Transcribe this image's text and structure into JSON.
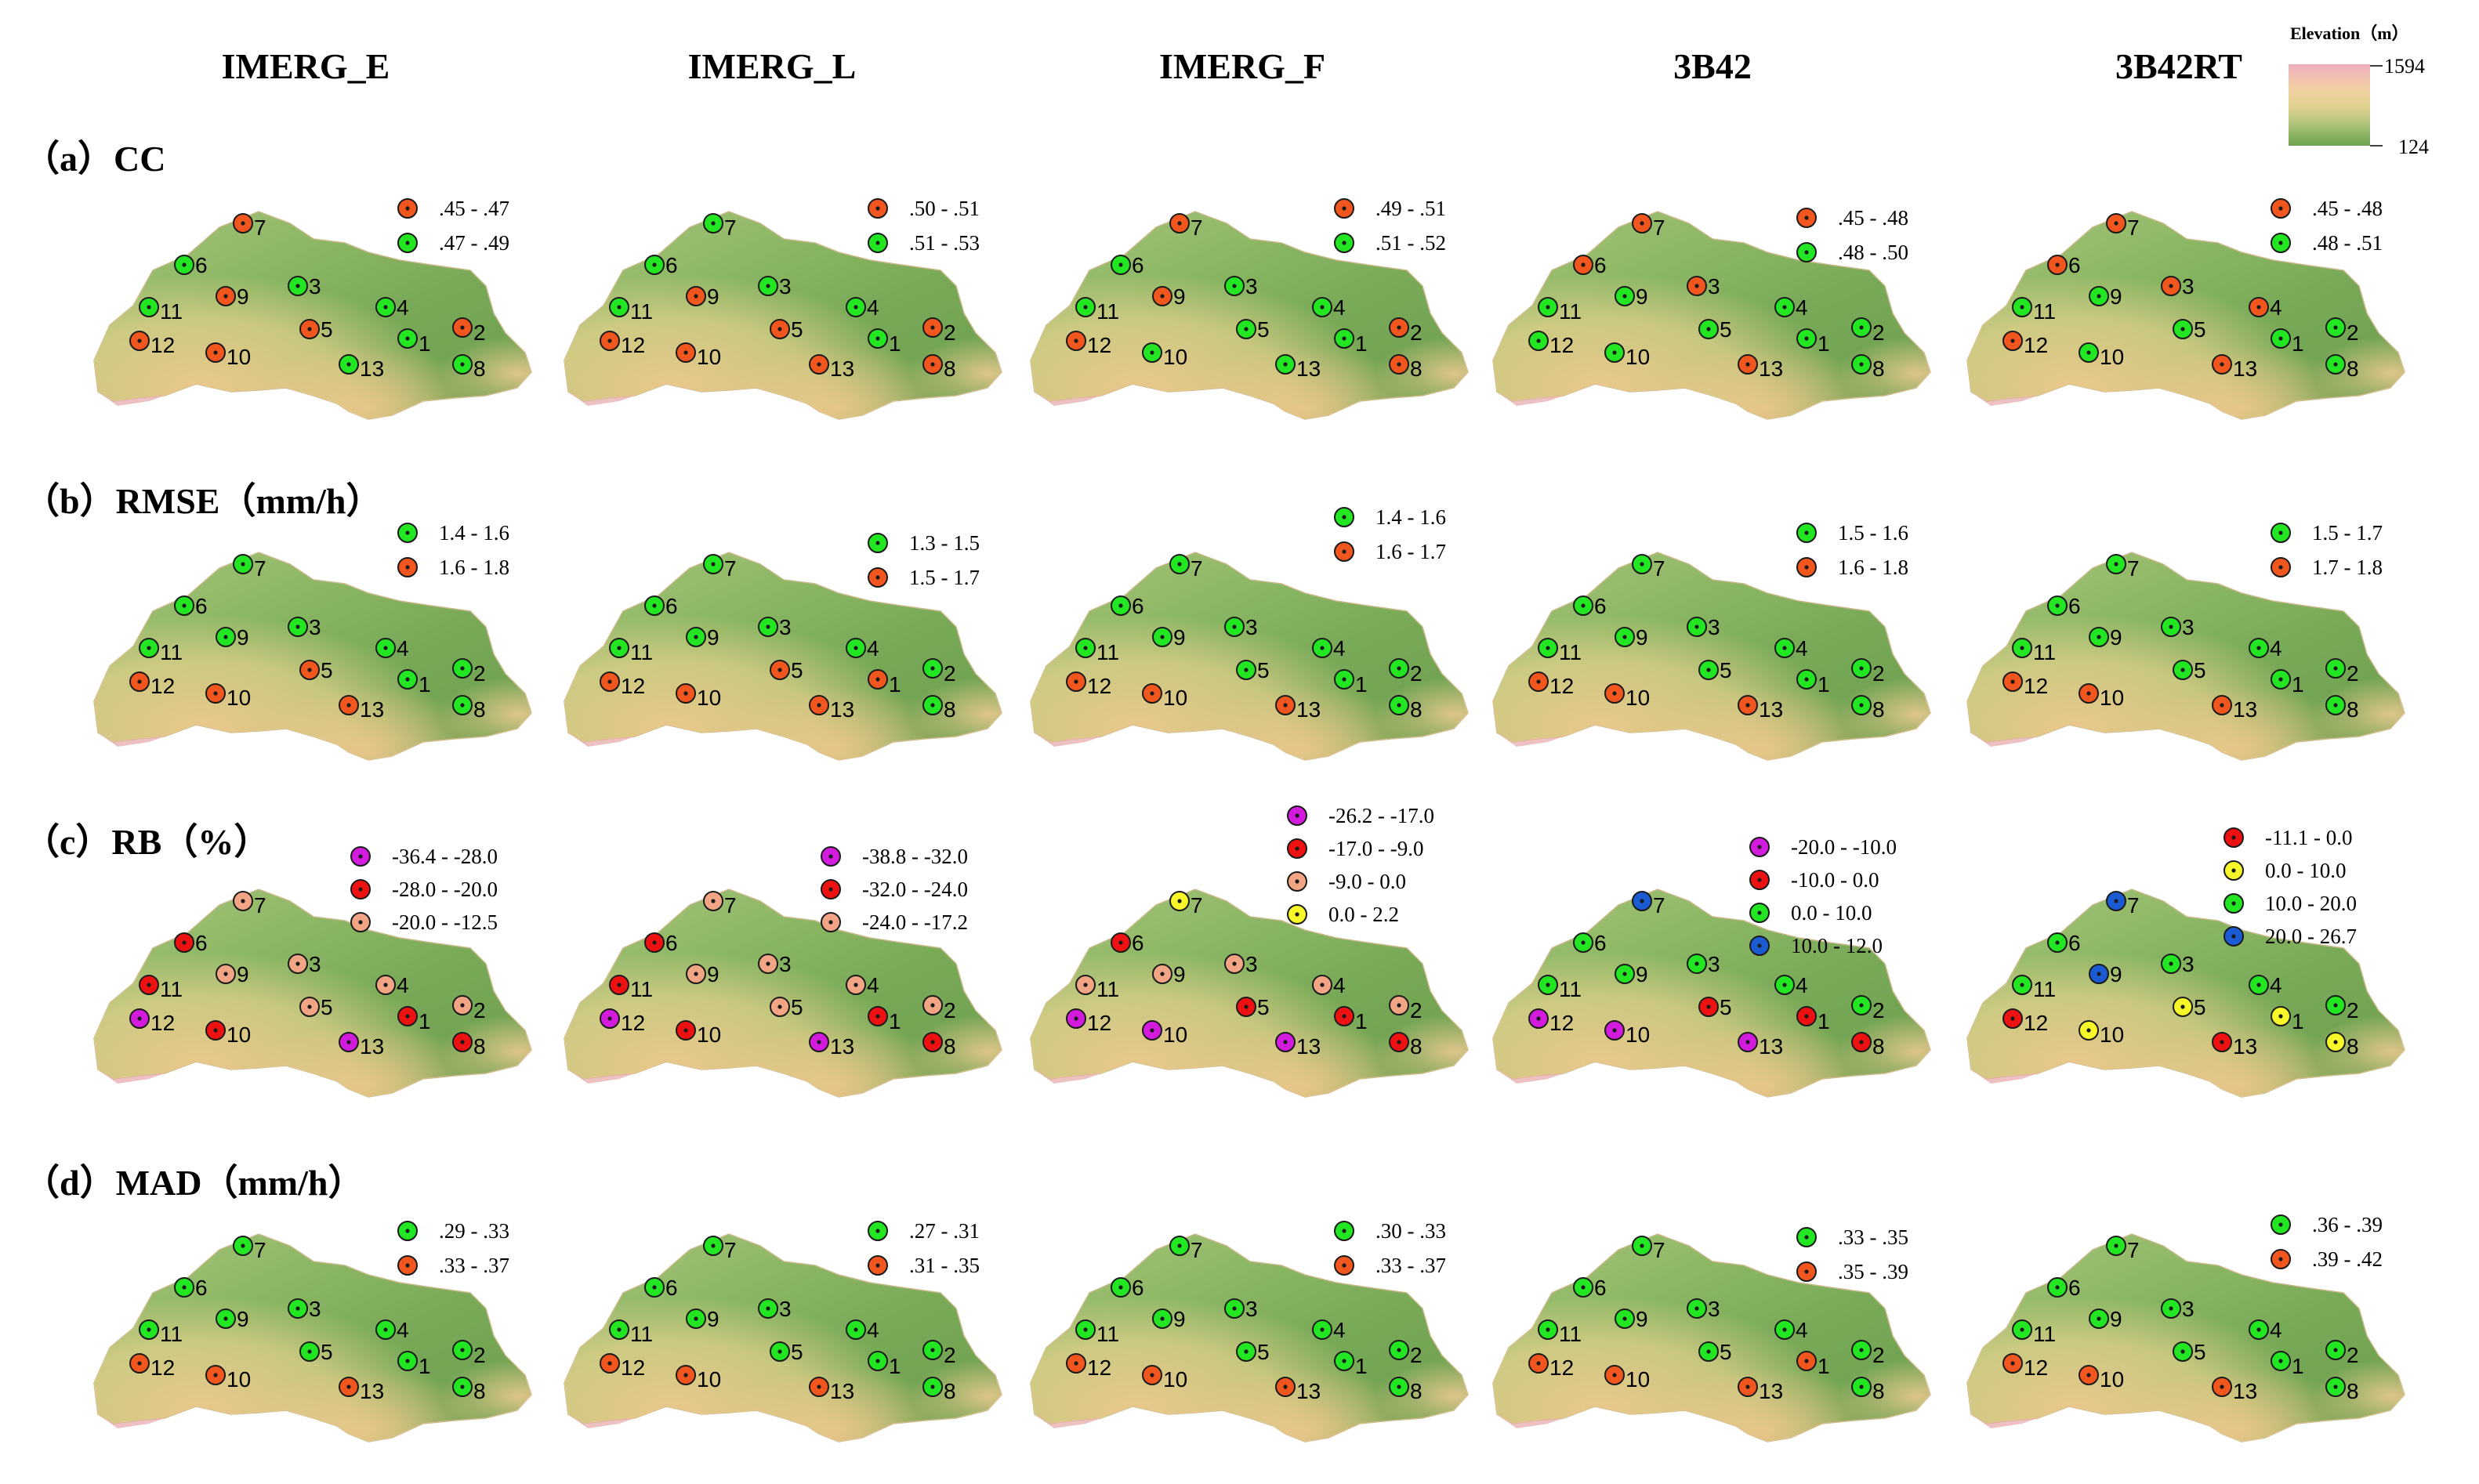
{
  "columns": [
    "IMERG_E",
    "IMERG_L",
    "IMERG_F",
    "3B42",
    "3B42RT"
  ],
  "colors": {
    "orange": "#f1561e",
    "green": "#22e622",
    "magenta": "#d21bdd",
    "red": "#ee1111",
    "salmon": "#f2a585",
    "yellow": "#f7f72a",
    "blue": "#1a5ad2"
  },
  "elevation_legend": {
    "title": "Elevation（m）",
    "max_label": "1594",
    "min_label": "124",
    "colors": [
      "#eeaebd",
      "#f3cfa4",
      "#e3d290",
      "#b8c780",
      "#8fb565",
      "#6ea34f"
    ]
  },
  "rows": [
    {
      "label": "（a）CC",
      "panels": [
        {
          "legend": [
            {
              "text": ".45 - .47",
              "color": "orange"
            },
            {
              "text": ".47 - .49",
              "color": "green"
            }
          ],
          "stations": {
            "1": "green",
            "2": "orange",
            "3": "green",
            "4": "green",
            "5": "orange",
            "6": "green",
            "7": "orange",
            "8": "green",
            "9": "orange",
            "10": "orange",
            "11": "green",
            "12": "orange",
            "13": "green"
          }
        },
        {
          "legend": [
            {
              "text": ".50 - .51",
              "color": "orange"
            },
            {
              "text": ".51 - .53",
              "color": "green"
            }
          ],
          "stations": {
            "1": "green",
            "2": "orange",
            "3": "green",
            "4": "green",
            "5": "orange",
            "6": "green",
            "7": "green",
            "8": "orange",
            "9": "orange",
            "10": "orange",
            "11": "green",
            "12": "orange",
            "13": "orange"
          }
        },
        {
          "legend": [
            {
              "text": ".49 - .51",
              "color": "orange"
            },
            {
              "text": ".51 - .52",
              "color": "green"
            }
          ],
          "stations": {
            "1": "green",
            "2": "orange",
            "3": "green",
            "4": "green",
            "5": "green",
            "6": "green",
            "7": "orange",
            "8": "orange",
            "9": "orange",
            "10": "green",
            "11": "green",
            "12": "orange",
            "13": "green"
          }
        },
        {
          "legend": [
            {
              "text": ".45 - .48",
              "color": "orange"
            },
            {
              "text": ".48 - .50",
              "color": "green"
            }
          ],
          "stations": {
            "1": "green",
            "2": "green",
            "3": "orange",
            "4": "green",
            "5": "green",
            "6": "orange",
            "7": "orange",
            "8": "green",
            "9": "green",
            "10": "green",
            "11": "green",
            "12": "green",
            "13": "orange"
          }
        },
        {
          "legend": [
            {
              "text": ".45 - .48",
              "color": "orange"
            },
            {
              "text": ".48 - .51",
              "color": "green"
            }
          ],
          "stations": {
            "1": "green",
            "2": "green",
            "3": "orange",
            "4": "orange",
            "5": "green",
            "6": "orange",
            "7": "orange",
            "8": "green",
            "9": "green",
            "10": "green",
            "11": "green",
            "12": "orange",
            "13": "orange"
          }
        }
      ]
    },
    {
      "label": "（b）RMSE（mm/h）",
      "panels": [
        {
          "legend": [
            {
              "text": "1.4 - 1.6",
              "color": "green"
            },
            {
              "text": "1.6 - 1.8",
              "color": "orange"
            }
          ],
          "stations": {
            "1": "green",
            "2": "green",
            "3": "green",
            "4": "green",
            "5": "orange",
            "6": "green",
            "7": "green",
            "8": "green",
            "9": "green",
            "10": "orange",
            "11": "green",
            "12": "orange",
            "13": "orange"
          }
        },
        {
          "legend": [
            {
              "text": "1.3 - 1.5",
              "color": "green"
            },
            {
              "text": "1.5 - 1.7",
              "color": "orange"
            }
          ],
          "stations": {
            "1": "orange",
            "2": "green",
            "3": "green",
            "4": "green",
            "5": "orange",
            "6": "green",
            "7": "green",
            "8": "green",
            "9": "green",
            "10": "orange",
            "11": "green",
            "12": "orange",
            "13": "orange"
          }
        },
        {
          "legend": [
            {
              "text": "1.4 - 1.6",
              "color": "green"
            },
            {
              "text": "1.6 - 1.7",
              "color": "orange"
            }
          ],
          "stations": {
            "1": "green",
            "2": "green",
            "3": "green",
            "4": "green",
            "5": "green",
            "6": "green",
            "7": "green",
            "8": "green",
            "9": "green",
            "10": "orange",
            "11": "green",
            "12": "orange",
            "13": "orange"
          }
        },
        {
          "legend": [
            {
              "text": "1.5 - 1.6",
              "color": "green"
            },
            {
              "text": "1.6 - 1.8",
              "color": "orange"
            }
          ],
          "stations": {
            "1": "green",
            "2": "green",
            "3": "green",
            "4": "green",
            "5": "green",
            "6": "green",
            "7": "green",
            "8": "green",
            "9": "green",
            "10": "orange",
            "11": "green",
            "12": "orange",
            "13": "orange"
          }
        },
        {
          "legend": [
            {
              "text": "1.5 - 1.7",
              "color": "green"
            },
            {
              "text": "1.7 - 1.8",
              "color": "orange"
            }
          ],
          "stations": {
            "1": "green",
            "2": "green",
            "3": "green",
            "4": "green",
            "5": "green",
            "6": "green",
            "7": "green",
            "8": "green",
            "9": "green",
            "10": "orange",
            "11": "green",
            "12": "orange",
            "13": "orange"
          }
        }
      ]
    },
    {
      "label": "（c）RB（%）",
      "panels": [
        {
          "legend": [
            {
              "text": "-36.4 - -28.0",
              "color": "magenta"
            },
            {
              "text": "-28.0 - -20.0",
              "color": "red"
            },
            {
              "text": "-20.0 - -12.5",
              "color": "salmon"
            }
          ],
          "stations": {
            "1": "red",
            "2": "salmon",
            "3": "salmon",
            "4": "salmon",
            "5": "salmon",
            "6": "red",
            "7": "salmon",
            "8": "red",
            "9": "salmon",
            "10": "red",
            "11": "red",
            "12": "magenta",
            "13": "magenta"
          }
        },
        {
          "legend": [
            {
              "text": "-38.8 - -32.0",
              "color": "magenta"
            },
            {
              "text": "-32.0 - -24.0",
              "color": "red"
            },
            {
              "text": "-24.0 - -17.2",
              "color": "salmon"
            }
          ],
          "stations": {
            "1": "red",
            "2": "salmon",
            "3": "salmon",
            "4": "salmon",
            "5": "salmon",
            "6": "red",
            "7": "salmon",
            "8": "red",
            "9": "salmon",
            "10": "red",
            "11": "red",
            "12": "magenta",
            "13": "magenta"
          }
        },
        {
          "legend": [
            {
              "text": "-26.2 - -17.0",
              "color": "magenta"
            },
            {
              "text": "-17.0 - -9.0",
              "color": "red"
            },
            {
              "text": "-9.0 - 0.0",
              "color": "salmon"
            },
            {
              "text": "0.0 - 2.2",
              "color": "yellow"
            }
          ],
          "stations": {
            "1": "red",
            "2": "salmon",
            "3": "salmon",
            "4": "salmon",
            "5": "red",
            "6": "red",
            "7": "yellow",
            "8": "red",
            "9": "salmon",
            "10": "magenta",
            "11": "salmon",
            "12": "magenta",
            "13": "magenta"
          }
        },
        {
          "legend": [
            {
              "text": "-20.0 - -10.0",
              "color": "magenta"
            },
            {
              "text": "-10.0 - 0.0",
              "color": "red"
            },
            {
              "text": "0.0 - 10.0",
              "color": "green"
            },
            {
              "text": "10.0 - 12.0",
              "color": "blue"
            }
          ],
          "stations": {
            "1": "red",
            "2": "green",
            "3": "green",
            "4": "green",
            "5": "red",
            "6": "green",
            "7": "blue",
            "8": "red",
            "9": "green",
            "10": "magenta",
            "11": "green",
            "12": "magenta",
            "13": "magenta"
          }
        },
        {
          "legend": [
            {
              "text": "-11.1 - 0.0",
              "color": "red"
            },
            {
              "text": "0.0 - 10.0",
              "color": "yellow"
            },
            {
              "text": "10.0 - 20.0",
              "color": "green"
            },
            {
              "text": "20.0 - 26.7",
              "color": "blue"
            }
          ],
          "stations": {
            "1": "yellow",
            "2": "green",
            "3": "green",
            "4": "green",
            "5": "yellow",
            "6": "green",
            "7": "blue",
            "8": "yellow",
            "9": "blue",
            "10": "yellow",
            "11": "green",
            "12": "red",
            "13": "red"
          }
        }
      ]
    },
    {
      "label": "（d）MAD（mm/h）",
      "panels": [
        {
          "legend": [
            {
              "text": ".29 - .33",
              "color": "green"
            },
            {
              "text": ".33 - .37",
              "color": "orange"
            }
          ],
          "stations": {
            "1": "green",
            "2": "green",
            "3": "green",
            "4": "green",
            "5": "green",
            "6": "green",
            "7": "green",
            "8": "green",
            "9": "green",
            "10": "orange",
            "11": "green",
            "12": "orange",
            "13": "orange"
          }
        },
        {
          "legend": [
            {
              "text": ".27 - .31",
              "color": "green"
            },
            {
              "text": ".31 - .35",
              "color": "orange"
            }
          ],
          "stations": {
            "1": "green",
            "2": "green",
            "3": "green",
            "4": "green",
            "5": "green",
            "6": "green",
            "7": "green",
            "8": "green",
            "9": "green",
            "10": "orange",
            "11": "green",
            "12": "orange",
            "13": "orange"
          }
        },
        {
          "legend": [
            {
              "text": ".30 - .33",
              "color": "green"
            },
            {
              "text": ".33 - .37",
              "color": "orange"
            }
          ],
          "stations": {
            "1": "green",
            "2": "green",
            "3": "green",
            "4": "green",
            "5": "green",
            "6": "green",
            "7": "green",
            "8": "green",
            "9": "green",
            "10": "orange",
            "11": "green",
            "12": "orange",
            "13": "orange"
          }
        },
        {
          "legend": [
            {
              "text": ".33 - .35",
              "color": "green"
            },
            {
              "text": ".35 - .39",
              "color": "orange"
            }
          ],
          "stations": {
            "1": "orange",
            "2": "green",
            "3": "green",
            "4": "green",
            "5": "green",
            "6": "green",
            "7": "green",
            "8": "green",
            "9": "green",
            "10": "orange",
            "11": "green",
            "12": "orange",
            "13": "orange"
          }
        },
        {
          "legend": [
            {
              "text": ".36 - .39",
              "color": "green"
            },
            {
              "text": ".39 - .42",
              "color": "orange"
            }
          ],
          "stations": {
            "1": "green",
            "2": "green",
            "3": "green",
            "4": "green",
            "5": "green",
            "6": "green",
            "7": "green",
            "8": "green",
            "9": "green",
            "10": "orange",
            "11": "green",
            "12": "orange",
            "13": "orange"
          }
        }
      ]
    }
  ]
}
